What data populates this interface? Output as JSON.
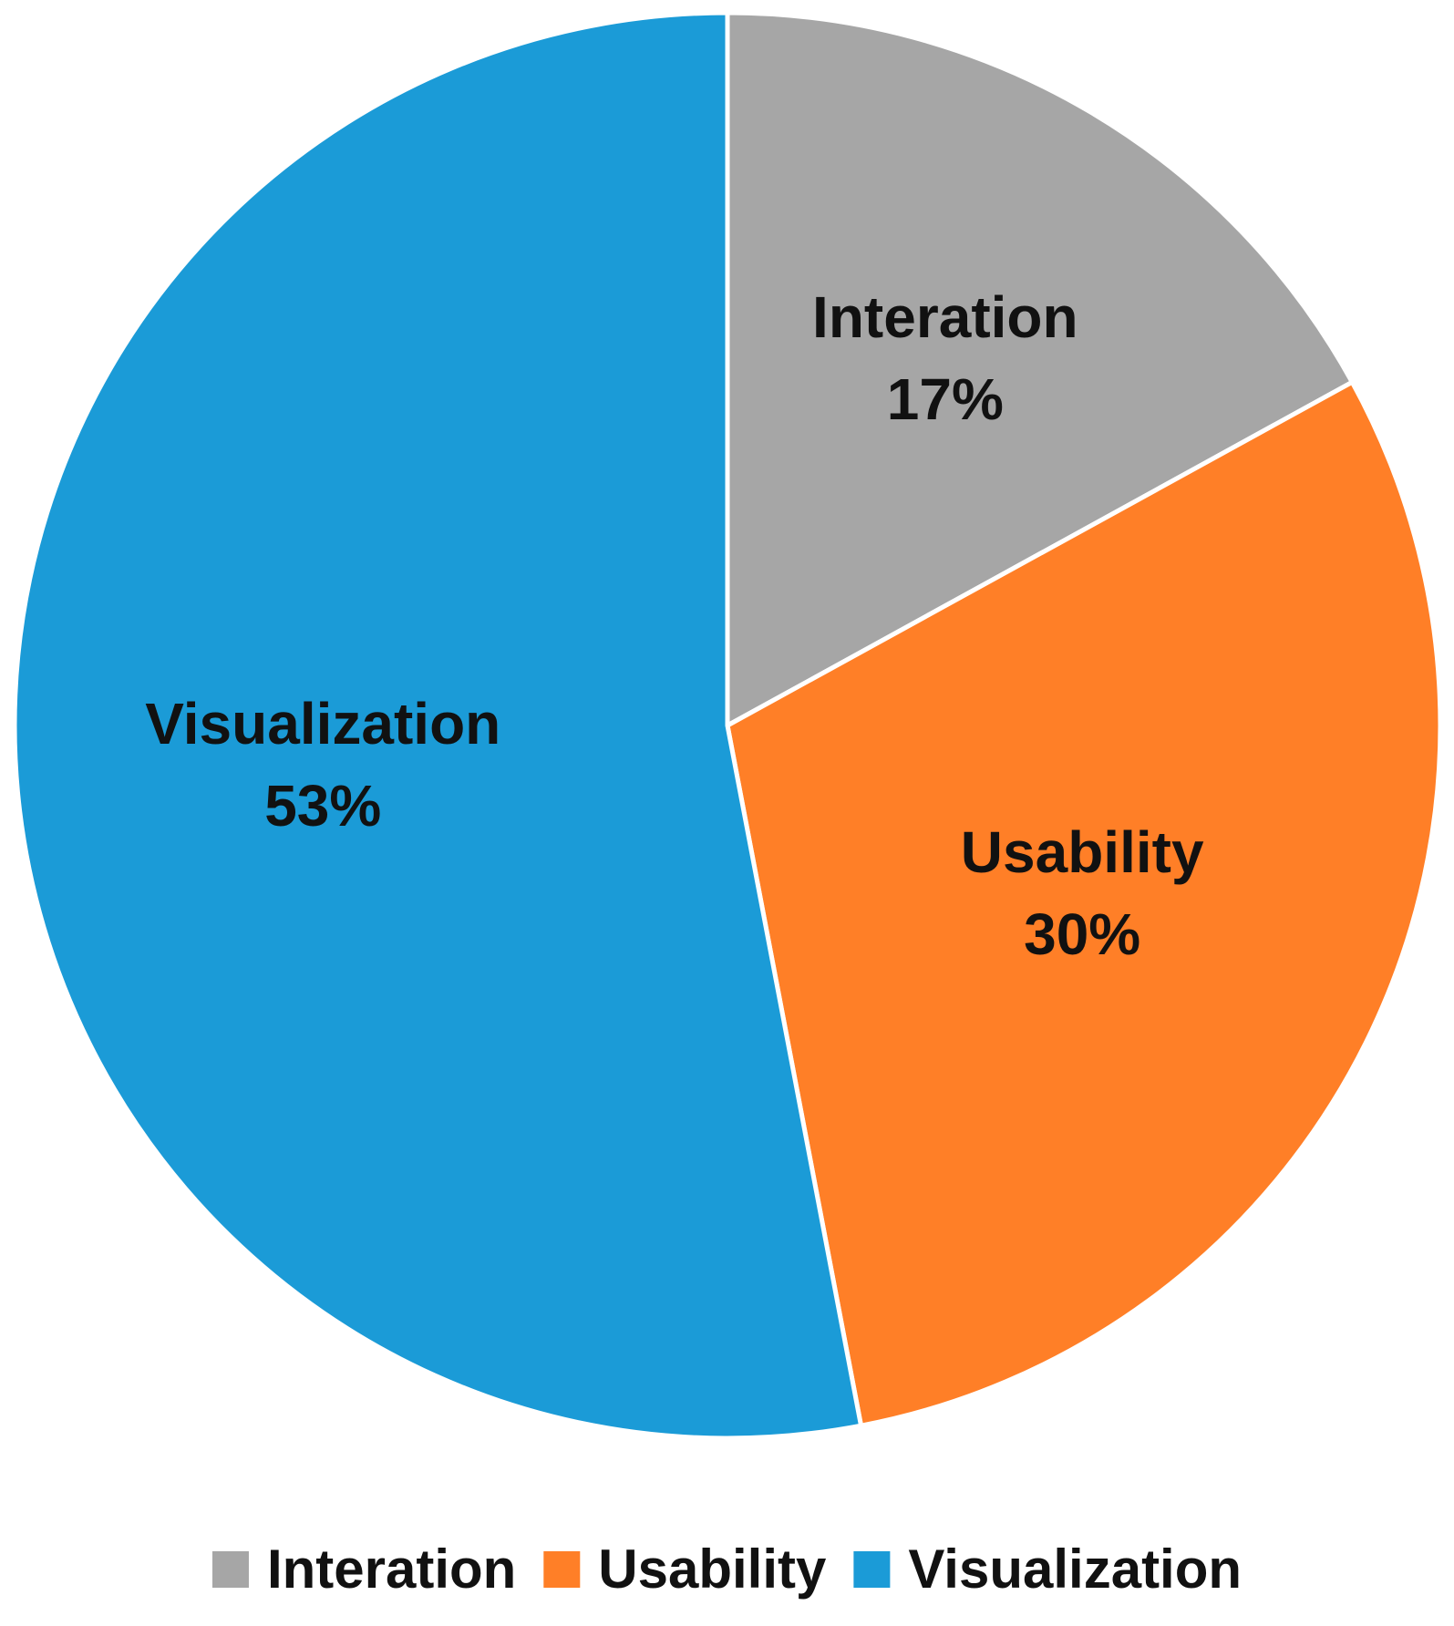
{
  "chart_data": {
    "type": "pie",
    "title": "",
    "categories": [
      "Interation",
      "Usability",
      "Visualization"
    ],
    "values": [
      17,
      30,
      53
    ],
    "value_labels": [
      "17%",
      "30%",
      "53%"
    ],
    "colors": [
      "#A6A6A6",
      "#FF7F27",
      "#1B9BD7"
    ],
    "start_angle_deg": 0,
    "direction": "clockwise",
    "legend": {
      "position": "bottom",
      "entries": [
        "Interation",
        "Usability",
        "Visualization"
      ]
    }
  }
}
